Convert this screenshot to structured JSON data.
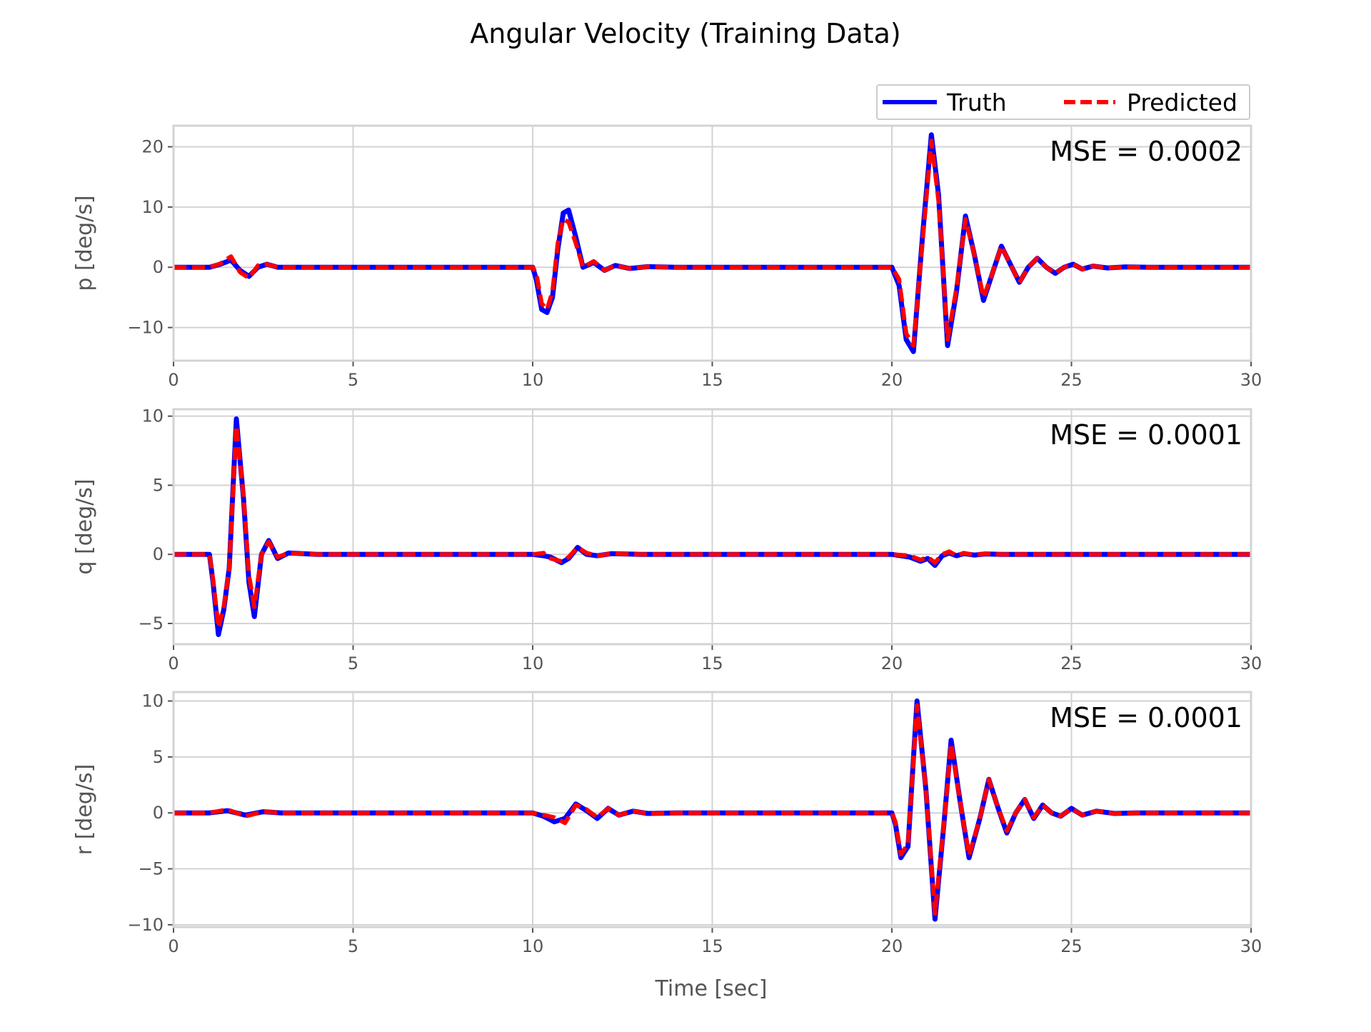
{
  "figure": {
    "title": "Angular Velocity (Training Data)",
    "xlabel": "Time [sec]",
    "legend": [
      {
        "label": "Truth",
        "color": "#0000ff",
        "style": "solid"
      },
      {
        "label": "Predicted",
        "color": "#ff0000",
        "style": "dashed"
      }
    ],
    "legend_loc": "top-right, above first panel"
  },
  "chart_data": [
    {
      "type": "line",
      "ylabel": "p [deg/s]",
      "annotation": "MSE = 0.0002",
      "xlim": [
        0,
        30
      ],
      "ylim": [
        -15.5,
        23.5
      ],
      "xticks": [
        0,
        5,
        10,
        15,
        20,
        25,
        30
      ],
      "yticks": [
        -10,
        0,
        10,
        20
      ],
      "grid": true,
      "series": [
        {
          "name": "Truth",
          "color": "#0000ff",
          "x": [
            0,
            1.0,
            1.3,
            1.6,
            1.85,
            2.1,
            2.35,
            2.6,
            2.9,
            3.3,
            4,
            10.0,
            10.1,
            10.25,
            10.4,
            10.55,
            10.7,
            10.85,
            11.0,
            11.2,
            11.4,
            11.7,
            12.0,
            12.3,
            12.7,
            13.2,
            14,
            20.0,
            20.2,
            20.4,
            20.6,
            20.85,
            21.1,
            21.3,
            21.55,
            21.8,
            22.05,
            22.3,
            22.55,
            22.8,
            23.05,
            23.3,
            23.55,
            23.8,
            24.05,
            24.3,
            24.55,
            24.8,
            25.05,
            25.3,
            25.6,
            26.0,
            26.5,
            27.2,
            30
          ],
          "values": [
            0,
            0,
            0.5,
            1.2,
            -0.5,
            -1.5,
            0,
            0.5,
            0,
            0,
            0,
            0,
            -2,
            -7,
            -7.5,
            -5,
            3,
            9,
            9.5,
            5,
            0,
            0.8,
            -0.5,
            0.3,
            -0.2,
            0.1,
            0,
            0,
            -3,
            -12,
            -14,
            5,
            22,
            12,
            -13,
            -4,
            8.5,
            2,
            -5.5,
            -1,
            3.5,
            0.5,
            -2.5,
            0,
            1.5,
            0,
            -1,
            0,
            0.5,
            -0.3,
            0.2,
            -0.1,
            0.05,
            0,
            0
          ]
        },
        {
          "name": "Predicted",
          "color": "#ff0000",
          "x": [
            0,
            1.0,
            1.3,
            1.6,
            1.85,
            2.1,
            2.35,
            2.6,
            2.9,
            3.3,
            4,
            10.0,
            10.1,
            10.25,
            10.4,
            10.55,
            10.7,
            10.85,
            11.0,
            11.2,
            11.4,
            11.7,
            12.0,
            12.3,
            12.7,
            13.2,
            14,
            20.0,
            20.2,
            20.4,
            20.6,
            20.85,
            21.1,
            21.3,
            21.55,
            21.8,
            22.05,
            22.3,
            22.55,
            22.8,
            23.05,
            23.3,
            23.55,
            23.8,
            24.05,
            24.3,
            24.55,
            24.8,
            25.05,
            25.3,
            25.6,
            26.0,
            26.5,
            27.2,
            30
          ],
          "values": [
            0,
            0,
            0.6,
            1.8,
            -0.8,
            -1.8,
            0.3,
            0.5,
            0,
            0,
            0,
            0,
            -1,
            -6,
            -7,
            -4,
            4,
            8,
            7.5,
            4,
            0,
            1,
            -0.5,
            0.3,
            -0.2,
            0.1,
            0,
            0,
            -2,
            -11,
            -13,
            4,
            21,
            11,
            -12,
            -3.5,
            8,
            2,
            -5,
            -1,
            3.5,
            0.5,
            -2.5,
            0,
            1.5,
            0,
            -1,
            0,
            0.5,
            -0.3,
            0.2,
            -0.1,
            0.05,
            0,
            0
          ]
        }
      ]
    },
    {
      "type": "line",
      "ylabel": "q [deg/s]",
      "annotation": "MSE = 0.0001",
      "xlim": [
        0,
        30
      ],
      "ylim": [
        -6.5,
        10.5
      ],
      "xticks": [
        0,
        5,
        10,
        15,
        20,
        25,
        30
      ],
      "yticks": [
        -5,
        0,
        5,
        10
      ],
      "grid": true,
      "series": [
        {
          "name": "Truth",
          "color": "#0000ff",
          "x": [
            0,
            1.0,
            1.1,
            1.25,
            1.4,
            1.55,
            1.75,
            1.95,
            2.1,
            2.25,
            2.45,
            2.65,
            2.9,
            3.2,
            4,
            10.0,
            10.3,
            10.5,
            10.8,
            11.0,
            11.25,
            11.5,
            11.8,
            12.2,
            13,
            20.0,
            20.5,
            20.8,
            21.0,
            21.2,
            21.4,
            21.6,
            21.8,
            22.0,
            22.3,
            22.6,
            23,
            30
          ],
          "values": [
            0,
            0,
            -2,
            -5.8,
            -4,
            -1,
            9.8,
            4,
            -2,
            -4.5,
            0,
            1,
            -0.3,
            0.1,
            0,
            0,
            -0.1,
            -0.2,
            -0.6,
            -0.3,
            0.5,
            0,
            -0.1,
            0.05,
            0,
            0,
            -0.2,
            -0.5,
            -0.3,
            -0.8,
            -0.1,
            0.1,
            -0.1,
            0.05,
            -0.05,
            0.03,
            0,
            0
          ]
        },
        {
          "name": "Predicted",
          "color": "#ff0000",
          "x": [
            0,
            1.0,
            1.1,
            1.25,
            1.4,
            1.55,
            1.75,
            1.95,
            2.1,
            2.25,
            2.45,
            2.65,
            2.9,
            3.2,
            4,
            10.0,
            10.3,
            10.5,
            10.8,
            11.0,
            11.25,
            11.5,
            11.8,
            12.2,
            13,
            20.0,
            20.5,
            20.8,
            21.0,
            21.2,
            21.4,
            21.6,
            21.8,
            22.0,
            22.3,
            22.6,
            23,
            30
          ],
          "values": [
            0,
            0,
            -1.8,
            -5.3,
            -3.8,
            -1,
            9.3,
            4.2,
            -1.5,
            -3.8,
            0,
            0.9,
            -0.2,
            0.1,
            0,
            0,
            0.1,
            -0.3,
            -0.5,
            -0.2,
            0.5,
            0.1,
            -0.1,
            0.05,
            0,
            0,
            -0.1,
            -0.4,
            -0.2,
            -0.6,
            0,
            0.2,
            -0.1,
            0.1,
            -0.05,
            0.05,
            0,
            0
          ]
        }
      ]
    },
    {
      "type": "line",
      "ylabel": "r [deg/s]",
      "annotation": "MSE = 0.0001",
      "xlim": [
        0,
        30
      ],
      "ylim": [
        -10.2,
        10.8
      ],
      "xticks": [
        0,
        5,
        10,
        15,
        20,
        25,
        30
      ],
      "yticks": [
        -10,
        -5,
        0,
        5,
        10
      ],
      "grid": true,
      "series": [
        {
          "name": "Truth",
          "color": "#0000ff",
          "x": [
            0,
            1.0,
            1.5,
            2.0,
            2.5,
            3.0,
            3.5,
            10.0,
            10.3,
            10.6,
            10.9,
            11.2,
            11.5,
            11.8,
            12.1,
            12.4,
            12.8,
            13.2,
            14,
            20.0,
            20.1,
            20.25,
            20.45,
            20.7,
            20.95,
            21.2,
            21.45,
            21.65,
            21.9,
            22.15,
            22.45,
            22.7,
            22.95,
            23.2,
            23.45,
            23.7,
            23.95,
            24.2,
            24.45,
            24.7,
            25.0,
            25.3,
            25.7,
            26.2,
            26.8,
            30
          ],
          "values": [
            0,
            0,
            0.2,
            -0.2,
            0.1,
            0,
            0,
            0,
            -0.3,
            -0.8,
            -0.5,
            0.8,
            0.2,
            -0.5,
            0.4,
            -0.2,
            0.15,
            -0.05,
            0,
            0,
            -1,
            -4,
            -3,
            10,
            2,
            -9.5,
            -1,
            6.5,
            1,
            -4,
            -0.5,
            3,
            0.5,
            -1.8,
            0,
            1.2,
            -0.5,
            0.7,
            0,
            -0.3,
            0.4,
            -0.2,
            0.15,
            -0.05,
            0,
            0
          ]
        },
        {
          "name": "Predicted",
          "color": "#ff0000",
          "x": [
            0,
            1.0,
            1.5,
            2.0,
            2.5,
            3.0,
            3.5,
            10.0,
            10.3,
            10.6,
            10.9,
            11.2,
            11.5,
            11.8,
            12.1,
            12.4,
            12.8,
            13.2,
            14,
            20.0,
            20.1,
            20.25,
            20.45,
            20.7,
            20.95,
            21.2,
            21.45,
            21.65,
            21.9,
            22.15,
            22.45,
            22.7,
            22.95,
            23.2,
            23.45,
            23.7,
            23.95,
            24.2,
            24.45,
            24.7,
            25.0,
            25.3,
            25.7,
            26.2,
            26.8,
            30
          ],
          "values": [
            0,
            0,
            0.3,
            -0.3,
            0.1,
            0,
            0,
            0,
            -0.2,
            -0.4,
            -0.9,
            0.7,
            0.3,
            -0.4,
            0.4,
            -0.2,
            0.15,
            -0.05,
            0,
            0,
            -0.8,
            -3.7,
            -2.8,
            9.6,
            2,
            -9,
            -1,
            6.2,
            1,
            -3.8,
            -0.5,
            3,
            0.5,
            -1.6,
            0,
            1.2,
            -0.4,
            0.7,
            0,
            -0.3,
            0.4,
            -0.2,
            0.15,
            -0.05,
            0,
            0
          ]
        }
      ]
    }
  ]
}
